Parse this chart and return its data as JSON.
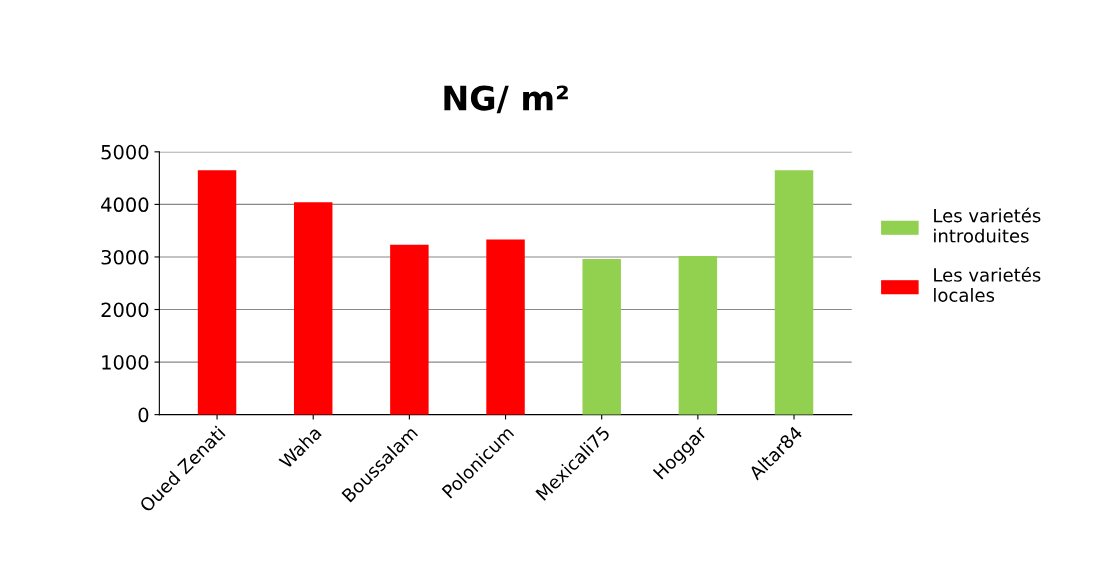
{
  "chart_data": {
    "type": "bar",
    "title": "NG/ m²",
    "categories": [
      "Oued Zenati",
      "Waha",
      "Boussalam",
      "Polonicum",
      "Mexicali75",
      "Hoggar",
      "Altar84"
    ],
    "series": [
      {
        "name": "Les varietés introduites",
        "color": "#92d050",
        "values": [
          null,
          null,
          null,
          null,
          2960,
          3020,
          4650
        ]
      },
      {
        "name": "Les varietés locales",
        "color": "#ff0000",
        "values": [
          4650,
          4040,
          3230,
          3330,
          null,
          null,
          null
        ]
      }
    ],
    "ylim": [
      0,
      5000
    ],
    "yticks": [
      0,
      1000,
      2000,
      3000,
      4000,
      5000
    ],
    "grid": "y",
    "legend": "right"
  }
}
